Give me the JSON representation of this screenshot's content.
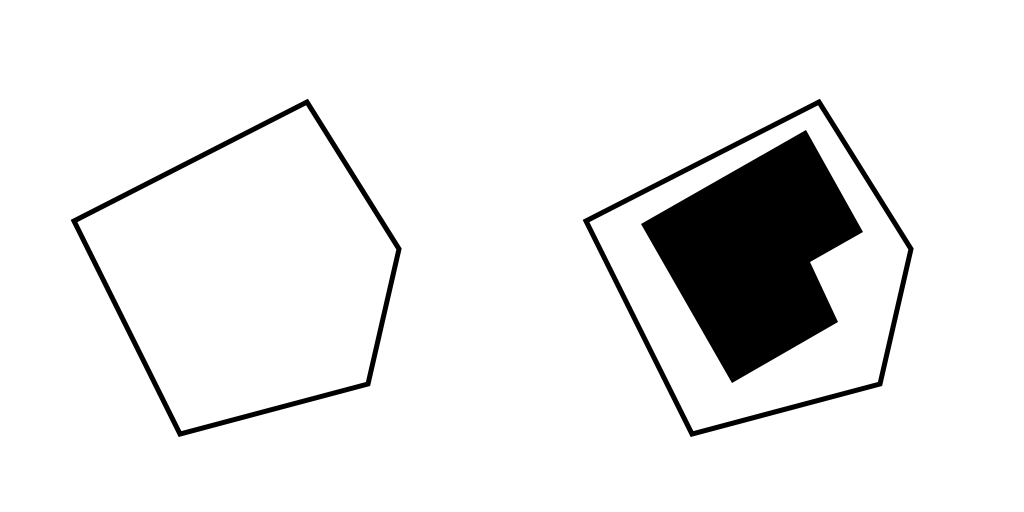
{
  "colors": {
    "background": "#ffffff",
    "stroke": "#000000",
    "fill": "#000000"
  },
  "figures": [
    {
      "name": "empty-pentagon",
      "has_inner_shape": false
    },
    {
      "name": "pentagon-with-l-shape",
      "has_inner_shape": true,
      "inner_shape": "l-shape-filled"
    }
  ]
}
